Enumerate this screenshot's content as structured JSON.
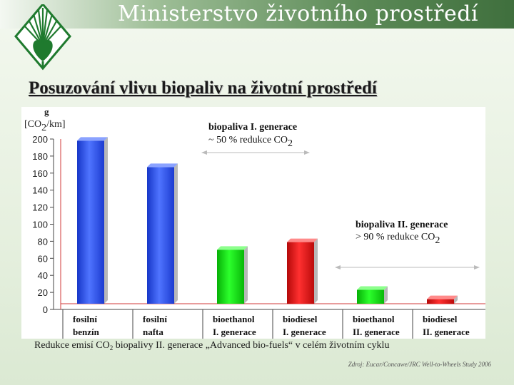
{
  "header": {
    "title": "Ministerstvo životního prostředí"
  },
  "slide": {
    "title": "Posuzování vlivu biopaliv na životní prostředí"
  },
  "chart_data": {
    "type": "bar",
    "ylabel_unit_top": "g",
    "ylabel_text": "[CO",
    "ylabel_sub": "2",
    "ylabel_suffix": "/km]",
    "ylim": [
      0,
      200
    ],
    "yticks": [
      "0",
      "20",
      "40",
      "60",
      "80",
      "100",
      "120",
      "140",
      "160",
      "180",
      "200"
    ],
    "categories": [
      {
        "line1": "fosilní",
        "line2": "benzín"
      },
      {
        "line1": "fosilní",
        "line2": "nafta"
      },
      {
        "line1": "bioethanol",
        "line2": "I. generace"
      },
      {
        "line1": "biodiesel",
        "line2": "I. generace"
      },
      {
        "line1": "bioethanol",
        "line2": "II. generace"
      },
      {
        "line1": "biodiesel",
        "line2": "II. generace"
      }
    ],
    "values": [
      198,
      167,
      70,
      79,
      23,
      12
    ],
    "colors": [
      "#2f54e6",
      "#2f54e6",
      "#11dd11",
      "#e41313",
      "#11dd11",
      "#e41313"
    ],
    "annotations": {
      "gen1_title": "biopaliva I. generace",
      "gen1_text": "~ 50 % redukce CO",
      "gen1_sub": "2",
      "gen2_title": "biopaliva II. generace",
      "gen2_text": "> 90 % redukce CO",
      "gen2_sub": "2"
    },
    "grid": false,
    "legend": "none"
  },
  "caption": {
    "pre": "Redukce emisí CO",
    "sub": "2",
    "post": " biopalivy II. generace „Advanced bio-fuels“ v celém životním cyklu"
  },
  "source": "Zdroj: Eucar/Concawe/JRC Well-to-Wheels Study 2006",
  "colors": {
    "banner_dark": "#3f6f3d",
    "logo_green": "#1f7a2e"
  },
  "icons": {
    "logo": "ministry-logo-icon"
  }
}
